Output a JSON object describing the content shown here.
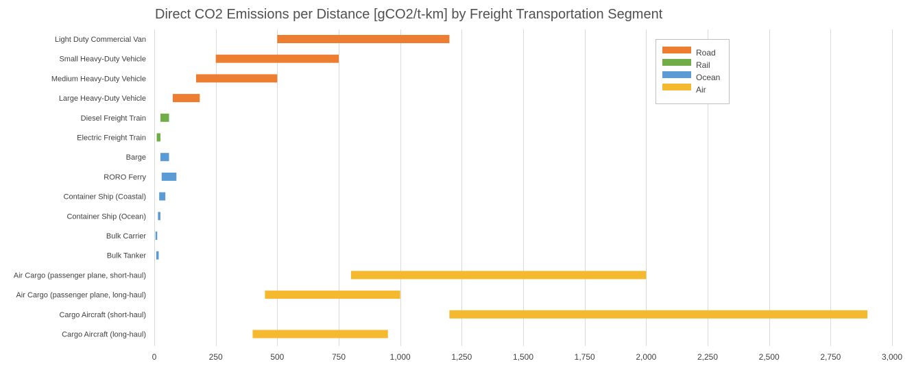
{
  "chart_data": {
    "type": "bar",
    "subtype": "floating-range-horizontal",
    "title": "Direct CO2 Emissions per Distance [gCO2/t-km] by Freight Transportation Segment",
    "xlabel": "",
    "ylabel": "",
    "xlim": [
      0,
      3000
    ],
    "x_ticks": [
      0,
      250,
      500,
      750,
      1000,
      1250,
      1500,
      1750,
      2000,
      2250,
      2500,
      2750,
      3000
    ],
    "x_tick_labels": [
      "0",
      "250",
      "500",
      "750",
      "1,000",
      "1,250",
      "1,500",
      "1,750",
      "2,000",
      "2,250",
      "2,500",
      "2,750",
      "3,000"
    ],
    "grid": "vertical",
    "legend_position": "top-right",
    "series": [
      {
        "name": "Road",
        "color": "#ED7D31"
      },
      {
        "name": "Rail",
        "color": "#70AD47"
      },
      {
        "name": "Ocean",
        "color": "#5B9BD5"
      },
      {
        "name": "Air",
        "color": "#F4B92F"
      }
    ],
    "bars": [
      {
        "category": "Light Duty Commercial Van",
        "series": "Road",
        "low": 500,
        "high": 1200
      },
      {
        "category": "Small Heavy-Duty Vehicle",
        "series": "Road",
        "low": 250,
        "high": 750
      },
      {
        "category": "Medium Heavy-Duty Vehicle",
        "series": "Road",
        "low": 170,
        "high": 500
      },
      {
        "category": "Large Heavy-Duty Vehicle",
        "series": "Road",
        "low": 75,
        "high": 185
      },
      {
        "category": "Diesel Freight Train",
        "series": "Rail",
        "low": 25,
        "high": 60
      },
      {
        "category": "Electric Freight Train",
        "series": "Rail",
        "low": 10,
        "high": 25
      },
      {
        "category": "Barge",
        "series": "Ocean",
        "low": 25,
        "high": 60
      },
      {
        "category": "RORO Ferry",
        "series": "Ocean",
        "low": 30,
        "high": 90
      },
      {
        "category": "Container Ship (Coastal)",
        "series": "Ocean",
        "low": 20,
        "high": 45
      },
      {
        "category": "Container Ship (Ocean)",
        "series": "Ocean",
        "low": 15,
        "high": 25
      },
      {
        "category": "Bulk Carrier",
        "series": "Ocean",
        "low": 5,
        "high": 12
      },
      {
        "category": "Bulk Tanker",
        "series": "Ocean",
        "low": 8,
        "high": 18
      },
      {
        "category": "Air Cargo (passenger plane, short-haul)",
        "series": "Air",
        "low": 800,
        "high": 2000
      },
      {
        "category": "Air Cargo (passenger plane, long-haul)",
        "series": "Air",
        "low": 450,
        "high": 1000
      },
      {
        "category": "Cargo Aircraft (short-haul)",
        "series": "Air",
        "low": 1200,
        "high": 2900
      },
      {
        "category": "Cargo Aircraft (long-haul)",
        "series": "Air",
        "low": 400,
        "high": 950
      }
    ]
  }
}
